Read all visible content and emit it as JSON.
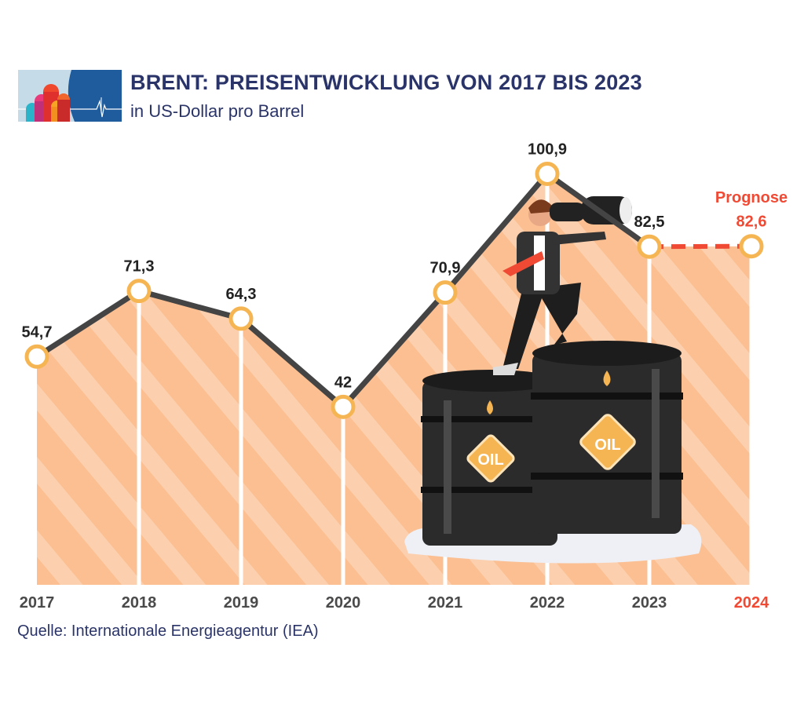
{
  "header": {
    "title": "BRENT: PREISENTWICKLUNG VON 2017 BIS 2023",
    "subtitle": "in US-Dollar pro Barrel"
  },
  "source": "Quelle: Internationale Energieagentur (IEA)",
  "chart_data": {
    "type": "area",
    "title": "BRENT: PREISENTWICKLUNG VON 2017 BIS 2023",
    "subtitle": "in US-Dollar pro Barrel",
    "xlabel": "",
    "ylabel": "",
    "categories": [
      "2017",
      "2018",
      "2019",
      "2020",
      "2021",
      "2022",
      "2023",
      "2024"
    ],
    "values": [
      54.7,
      71.3,
      64.3,
      42,
      70.9,
      100.9,
      82.5,
      82.6
    ],
    "data_labels": [
      "54,7",
      "71,3",
      "64,3",
      "42",
      "70,9",
      "100,9",
      "82,5",
      "82,6"
    ],
    "forecast_from_index": 6,
    "forecast_label": "Prognose",
    "grid": false,
    "colors": {
      "line": "#444444",
      "area": "#fbc49a",
      "marker": "#f6b553",
      "forecast": "#f04a35",
      "text": "#222222",
      "axis_text": "#4a4a4a"
    }
  },
  "illustration": {
    "barrel_label": "OIL"
  }
}
